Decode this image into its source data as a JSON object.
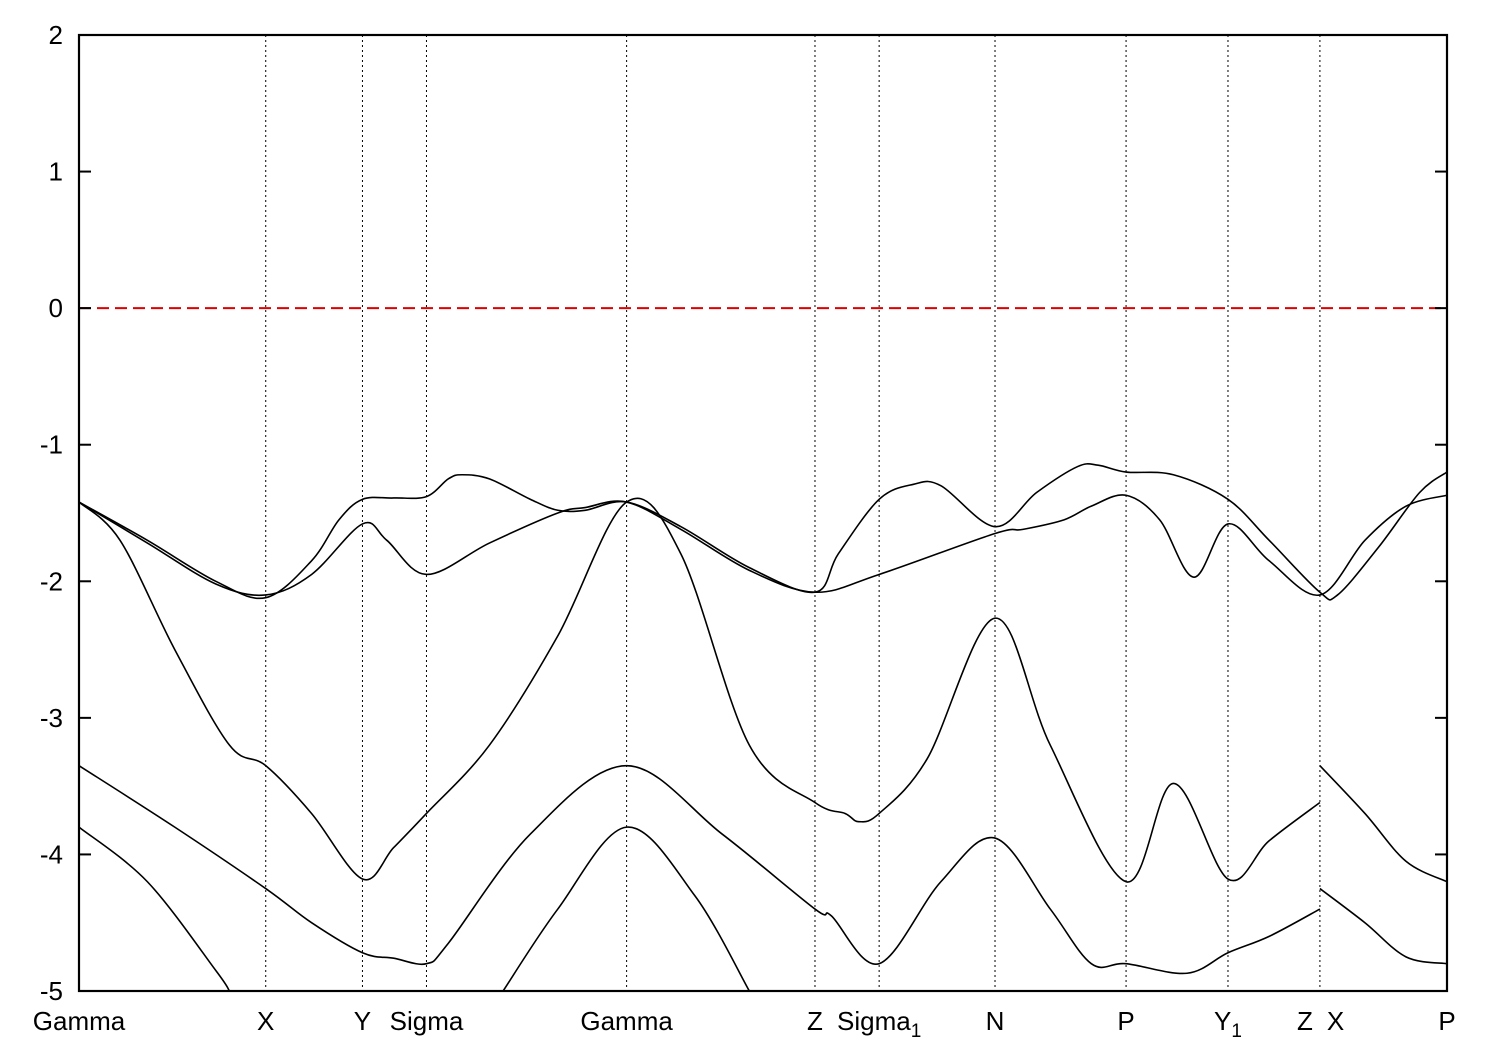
{
  "chart_data": {
    "type": "line",
    "title": "",
    "xlabel": "",
    "ylabel": "",
    "ylim": [
      -5,
      2
    ],
    "yticks": [
      2,
      1,
      0,
      -1,
      -2,
      -3,
      -4,
      -5
    ],
    "grid": false,
    "legend": "none",
    "reference_line": {
      "y": 0,
      "color": "#e00000",
      "style": "dashed"
    },
    "band_color": "#000000",
    "kpoints": [
      {
        "label": "Gamma",
        "sub": "",
        "x": 0.0
      },
      {
        "label": "X",
        "sub": "",
        "x": 0.1365
      },
      {
        "label": "Y",
        "sub": "",
        "x": 0.2072
      },
      {
        "label": "Sigma",
        "sub": "",
        "x": 0.254
      },
      {
        "label": "Gamma",
        "sub": "",
        "x": 0.4003
      },
      {
        "label": "Z",
        "sub": "",
        "x": 0.538
      },
      {
        "label": "Sigma",
        "sub": "1",
        "x": 0.5849
      },
      {
        "label": "N",
        "sub": "",
        "x": 0.6696
      },
      {
        "label": "P",
        "sub": "",
        "x": 0.7654
      },
      {
        "label": "Y",
        "sub": "1",
        "x": 0.8399
      },
      {
        "label": "Z",
        "sub": "",
        "x": 0.9071
      },
      {
        "label": "X",
        "sub": "",
        "x": 0.9071
      },
      {
        "label": "P",
        "sub": "",
        "x": 1.0
      }
    ],
    "series": [
      {
        "points": [
          [
            0,
            -1.42
          ],
          [
            0.05,
            -1.7
          ],
          [
            0.1,
            -2.0
          ],
          [
            0.1365,
            -2.12
          ],
          [
            0.17,
            -1.85
          ],
          [
            0.19,
            -1.55
          ],
          [
            0.2072,
            -1.4
          ],
          [
            0.23,
            -1.39
          ],
          [
            0.254,
            -1.38
          ],
          [
            0.27,
            -1.25
          ],
          [
            0.28,
            -1.22
          ],
          [
            0.3,
            -1.25
          ],
          [
            0.33,
            -1.4
          ],
          [
            0.35,
            -1.48
          ],
          [
            0.37,
            -1.48
          ],
          [
            0.4003,
            -1.42
          ],
          [
            0.44,
            -1.6
          ],
          [
            0.49,
            -1.9
          ],
          [
            0.538,
            -2.08
          ],
          [
            0.555,
            -1.8
          ],
          [
            0.5849,
            -1.4
          ],
          [
            0.61,
            -1.29
          ],
          [
            0.63,
            -1.3
          ],
          [
            0.6696,
            -1.6
          ],
          [
            0.7,
            -1.35
          ],
          [
            0.73,
            -1.16
          ],
          [
            0.745,
            -1.15
          ],
          [
            0.7654,
            -1.2
          ],
          [
            0.8,
            -1.22
          ],
          [
            0.8399,
            -1.4
          ],
          [
            0.87,
            -1.7
          ],
          [
            0.9071,
            -2.08
          ],
          [
            0.92,
            -2.1
          ],
          [
            0.95,
            -1.75
          ],
          [
            0.98,
            -1.35
          ],
          [
            1.0,
            -1.2
          ]
        ]
      },
      {
        "points": [
          [
            0,
            -1.42
          ],
          [
            0.05,
            -1.72
          ],
          [
            0.1,
            -2.02
          ],
          [
            0.1365,
            -2.1
          ],
          [
            0.17,
            -1.95
          ],
          [
            0.2072,
            -1.58
          ],
          [
            0.225,
            -1.7
          ],
          [
            0.254,
            -1.95
          ],
          [
            0.3,
            -1.72
          ],
          [
            0.35,
            -1.5
          ],
          [
            0.37,
            -1.46
          ],
          [
            0.4003,
            -1.42
          ],
          [
            0.44,
            -1.62
          ],
          [
            0.49,
            -1.92
          ],
          [
            0.538,
            -2.08
          ],
          [
            0.5849,
            -1.95
          ],
          [
            0.6696,
            -1.65
          ],
          [
            0.69,
            -1.62
          ],
          [
            0.72,
            -1.55
          ],
          [
            0.74,
            -1.45
          ],
          [
            0.7654,
            -1.37
          ],
          [
            0.79,
            -1.55
          ],
          [
            0.815,
            -1.97
          ],
          [
            0.8399,
            -1.58
          ],
          [
            0.87,
            -1.85
          ],
          [
            0.9071,
            -2.1
          ],
          [
            0.94,
            -1.7
          ],
          [
            0.97,
            -1.45
          ],
          [
            1.0,
            -1.37
          ]
        ]
      },
      {
        "points": [
          [
            0,
            -1.42
          ],
          [
            0.03,
            -1.7
          ],
          [
            0.07,
            -2.5
          ],
          [
            0.11,
            -3.2
          ],
          [
            0.1365,
            -3.35
          ],
          [
            0.17,
            -3.7
          ],
          [
            0.2072,
            -4.18
          ],
          [
            0.23,
            -3.95
          ],
          [
            0.254,
            -3.7
          ],
          [
            0.3,
            -3.2
          ],
          [
            0.35,
            -2.4
          ],
          [
            0.4003,
            -1.42
          ],
          [
            0.44,
            -1.8
          ],
          [
            0.49,
            -3.2
          ],
          [
            0.538,
            -3.62
          ],
          [
            0.56,
            -3.7
          ],
          [
            0.57,
            -3.76
          ],
          [
            0.5849,
            -3.7
          ],
          [
            0.62,
            -3.3
          ],
          [
            0.6696,
            -2.27
          ],
          [
            0.71,
            -3.2
          ],
          [
            0.7654,
            -4.2
          ],
          [
            0.8,
            -3.48
          ],
          [
            0.8399,
            -4.18
          ],
          [
            0.87,
            -3.9
          ],
          [
            0.9071,
            -3.62
          ]
        ]
      },
      {
        "points": [
          [
            0.9071,
            -3.35
          ],
          [
            0.94,
            -3.7
          ],
          [
            0.97,
            -4.05
          ],
          [
            1.0,
            -4.2
          ]
        ]
      },
      {
        "points": [
          [
            0,
            -3.35
          ],
          [
            0.07,
            -3.8
          ],
          [
            0.1365,
            -4.25
          ],
          [
            0.17,
            -4.5
          ],
          [
            0.2072,
            -4.72
          ],
          [
            0.23,
            -4.76
          ],
          [
            0.254,
            -4.8
          ],
          [
            0.27,
            -4.65
          ],
          [
            0.33,
            -3.85
          ],
          [
            0.4003,
            -3.35
          ],
          [
            0.47,
            -3.85
          ],
          [
            0.538,
            -4.4
          ],
          [
            0.55,
            -4.45
          ],
          [
            0.5849,
            -4.8
          ],
          [
            0.63,
            -4.2
          ],
          [
            0.6696,
            -3.88
          ],
          [
            0.71,
            -4.4
          ],
          [
            0.74,
            -4.8
          ],
          [
            0.7654,
            -4.8
          ],
          [
            0.81,
            -4.87
          ],
          [
            0.8399,
            -4.72
          ],
          [
            0.87,
            -4.6
          ],
          [
            0.9071,
            -4.4
          ]
        ]
      },
      {
        "points": [
          [
            0.9071,
            -4.25
          ],
          [
            0.94,
            -4.5
          ],
          [
            0.97,
            -4.75
          ],
          [
            1.0,
            -4.8
          ]
        ]
      },
      {
        "points": [
          [
            0,
            -3.8
          ],
          [
            0.05,
            -4.2
          ],
          [
            0.1,
            -4.85
          ],
          [
            0.11,
            -5.0
          ]
        ]
      },
      {
        "points": [
          [
            0.31,
            -5.0
          ],
          [
            0.35,
            -4.4
          ],
          [
            0.4003,
            -3.8
          ],
          [
            0.45,
            -4.3
          ],
          [
            0.49,
            -5.0
          ]
        ]
      }
    ]
  }
}
